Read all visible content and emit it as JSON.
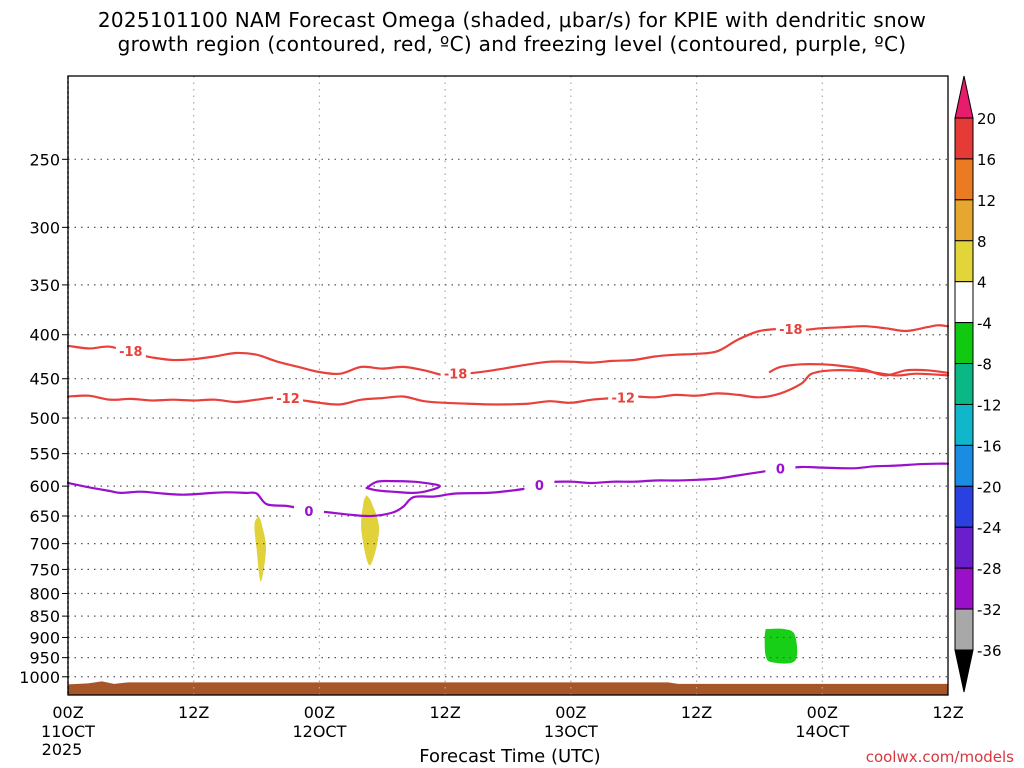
{
  "title": {
    "line1": "2025101100 NAM Forecast Omega (shaded, μbar/s) for KPIE with dendritic snow",
    "line2": "growth region (contoured, red, ºC) and freezing level (contoured, purple, ºC)"
  },
  "credit": "coolwx.com/models",
  "chart_data": {
    "type": "contour",
    "title": "2025101100 NAM Forecast Omega (shaded, μbar/s) for KPIE with dendritic snow growth region (contoured, red, ºC) and freezing level (contoured, purple, ºC)",
    "xlabel": "Forecast Time (UTC)",
    "ylabel": "",
    "x_unit": "forecast hour",
    "xlim": [
      0,
      84
    ],
    "y_scale": "log-pressure",
    "ylim": [
      1050,
      200
    ],
    "grid": true,
    "x_ticks": [
      {
        "hour": 0,
        "label": "00Z",
        "date": "11OCT",
        "year": "2025"
      },
      {
        "hour": 12,
        "label": "12Z",
        "date": "",
        "year": ""
      },
      {
        "hour": 24,
        "label": "00Z",
        "date": "12OCT",
        "year": ""
      },
      {
        "hour": 36,
        "label": "12Z",
        "date": "",
        "year": ""
      },
      {
        "hour": 48,
        "label": "00Z",
        "date": "13OCT",
        "year": ""
      },
      {
        "hour": 60,
        "label": "12Z",
        "date": "",
        "year": ""
      },
      {
        "hour": 72,
        "label": "00Z",
        "date": "14OCT",
        "year": ""
      },
      {
        "hour": 84,
        "label": "12Z",
        "date": "",
        "year": ""
      }
    ],
    "y_ticks": [
      250,
      300,
      350,
      400,
      450,
      500,
      550,
      600,
      650,
      700,
      750,
      800,
      850,
      900,
      950,
      1000
    ],
    "series": [
      {
        "name": "-18",
        "color": "#e8413c",
        "points": [
          [
            0,
            412
          ],
          [
            2,
            415
          ],
          [
            4,
            413
          ],
          [
            6,
            420
          ],
          [
            8,
            425
          ],
          [
            10,
            428
          ],
          [
            12,
            427
          ],
          [
            14,
            424
          ],
          [
            16,
            420
          ],
          [
            18,
            422
          ],
          [
            20,
            430
          ],
          [
            22,
            436
          ],
          [
            24,
            442
          ],
          [
            26,
            444
          ],
          [
            28,
            436
          ],
          [
            30,
            438
          ],
          [
            32,
            436
          ],
          [
            34,
            440
          ],
          [
            36,
            446
          ],
          [
            38,
            444
          ],
          [
            40,
            441
          ],
          [
            42,
            437
          ],
          [
            44,
            433
          ],
          [
            46,
            430
          ],
          [
            48,
            430
          ],
          [
            50,
            431
          ],
          [
            52,
            429
          ],
          [
            54,
            428
          ],
          [
            56,
            424
          ],
          [
            58,
            422
          ],
          [
            60,
            421
          ],
          [
            62,
            418
          ],
          [
            64,
            405
          ],
          [
            66,
            396
          ],
          [
            68,
            394
          ],
          [
            70,
            395
          ],
          [
            72,
            393
          ],
          [
            74,
            392
          ],
          [
            76,
            391
          ],
          [
            78,
            393
          ],
          [
            80,
            396
          ],
          [
            82,
            392
          ],
          [
            83,
            390
          ],
          [
            84,
            391
          ]
        ],
        "labels": [
          [
            6,
            418
          ],
          [
            37,
            444
          ],
          [
            69,
            394
          ]
        ]
      },
      {
        "name": "-18",
        "color": "#e8413c",
        "points": [
          [
            67,
            442
          ],
          [
            68,
            436
          ],
          [
            70,
            433
          ],
          [
            72,
            433
          ],
          [
            74,
            435
          ],
          [
            76,
            439
          ],
          [
            78,
            446
          ],
          [
            80,
            440
          ],
          [
            82,
            440
          ],
          [
            84,
            443
          ]
        ],
        "labels": []
      },
      {
        "name": "-12",
        "color": "#e8413c",
        "points": [
          [
            0,
            472
          ],
          [
            2,
            471
          ],
          [
            4,
            476
          ],
          [
            6,
            475
          ],
          [
            8,
            477
          ],
          [
            10,
            476
          ],
          [
            12,
            477
          ],
          [
            14,
            476
          ],
          [
            16,
            479
          ],
          [
            18,
            476
          ],
          [
            20,
            473
          ],
          [
            22,
            476
          ],
          [
            24,
            480
          ],
          [
            26,
            482
          ],
          [
            28,
            476
          ],
          [
            30,
            474
          ],
          [
            32,
            472
          ],
          [
            34,
            478
          ],
          [
            36,
            480
          ],
          [
            38,
            481
          ],
          [
            40,
            482
          ],
          [
            42,
            482
          ],
          [
            44,
            481
          ],
          [
            46,
            478
          ],
          [
            48,
            480
          ],
          [
            50,
            476
          ],
          [
            52,
            474
          ],
          [
            54,
            472
          ],
          [
            56,
            473
          ],
          [
            58,
            470
          ],
          [
            60,
            471
          ],
          [
            62,
            468
          ],
          [
            64,
            470
          ],
          [
            66,
            473
          ],
          [
            68,
            468
          ],
          [
            70,
            456
          ],
          [
            71,
            444
          ],
          [
            73,
            440
          ],
          [
            76,
            441
          ],
          [
            79,
            446
          ],
          [
            81,
            444
          ],
          [
            84,
            446
          ]
        ],
        "labels": [
          [
            21,
            474
          ],
          [
            53,
            473
          ]
        ]
      },
      {
        "name": "0",
        "color": "#9a10cc",
        "points": [
          [
            0,
            595
          ],
          [
            2,
            602
          ],
          [
            4,
            608
          ],
          [
            5,
            611
          ],
          [
            7,
            609
          ],
          [
            9,
            612
          ],
          [
            11,
            614
          ],
          [
            13,
            612
          ],
          [
            15,
            610
          ],
          [
            17,
            611
          ],
          [
            18,
            612
          ],
          [
            19,
            630
          ],
          [
            21,
            633
          ],
          [
            23,
            640
          ],
          [
            25,
            644
          ],
          [
            27,
            648
          ],
          [
            29,
            650
          ],
          [
            31,
            644
          ],
          [
            32,
            634
          ],
          [
            33,
            618
          ],
          [
            35,
            617
          ],
          [
            37,
            612
          ],
          [
            40,
            611
          ],
          [
            42,
            608
          ],
          [
            44,
            603
          ],
          [
            46,
            594
          ],
          [
            48,
            593
          ],
          [
            50,
            595
          ],
          [
            52,
            593
          ],
          [
            54,
            593
          ],
          [
            56,
            591
          ],
          [
            58,
            591
          ],
          [
            60,
            590
          ],
          [
            62,
            588
          ],
          [
            64,
            583
          ],
          [
            66,
            578
          ],
          [
            68,
            573
          ],
          [
            70,
            570
          ],
          [
            72,
            571
          ],
          [
            75,
            572
          ],
          [
            77,
            569
          ],
          [
            79,
            568
          ],
          [
            81,
            566
          ],
          [
            83,
            565
          ],
          [
            84,
            565
          ]
        ],
        "labels": [
          [
            23,
            641
          ],
          [
            45,
            598
          ],
          [
            68,
            572
          ]
        ]
      },
      {
        "name": "0",
        "color": "#9a10cc",
        "points": [
          [
            28.5,
            603
          ],
          [
            29.5,
            593
          ],
          [
            31,
            592
          ],
          [
            33,
            593
          ],
          [
            34.5,
            596
          ],
          [
            35.5,
            600
          ],
          [
            34.5,
            607
          ],
          [
            33,
            611
          ],
          [
            31,
            609
          ],
          [
            29.5,
            607
          ],
          [
            28.5,
            603
          ]
        ],
        "labels": []
      }
    ],
    "shaded_regions": [
      {
        "value_range": [
          4,
          8
        ],
        "color": "#e1d13a",
        "points": [
          [
            18.2,
            650
          ],
          [
            18.5,
            665
          ],
          [
            18.9,
            710
          ],
          [
            18.4,
            775
          ],
          [
            18.0,
            710
          ],
          [
            17.8,
            665
          ]
        ]
      },
      {
        "value_range": [
          4,
          8
        ],
        "color": "#e1d13a",
        "points": [
          [
            28.5,
            615
          ],
          [
            29.0,
            628
          ],
          [
            29.7,
            675
          ],
          [
            28.8,
            742
          ],
          [
            28.0,
            675
          ],
          [
            28.2,
            628
          ]
        ]
      },
      {
        "value_range": [
          -8,
          -4
        ],
        "color": "#16cf16",
        "points": [
          [
            66.6,
            880
          ],
          [
            68.4,
            880
          ],
          [
            69.4,
            895
          ],
          [
            69.4,
            958
          ],
          [
            67.2,
            962
          ],
          [
            66.6,
            945
          ],
          [
            66.5,
            900
          ]
        ]
      }
    ],
    "ground": {
      "color": "#a65629",
      "pressure": 1015
    },
    "colorbar": {
      "label": "μbar/s",
      "ticks": [
        "20",
        "16",
        "12",
        "8",
        "4",
        "-4",
        "-8",
        "-12",
        "-16",
        "-20",
        "-24",
        "-28",
        "-32",
        "-36"
      ],
      "colors": [
        "#e81c6c",
        "#e63a37",
        "#ea7b23",
        "#e6a630",
        "#e2d53a",
        "#ffffff",
        "#12c912",
        "#0ab885",
        "#10b6c9",
        "#1a8de3",
        "#2a40e0",
        "#6a1fcc",
        "#9a10c8",
        "#a8a8a8",
        "#000000"
      ]
    }
  }
}
